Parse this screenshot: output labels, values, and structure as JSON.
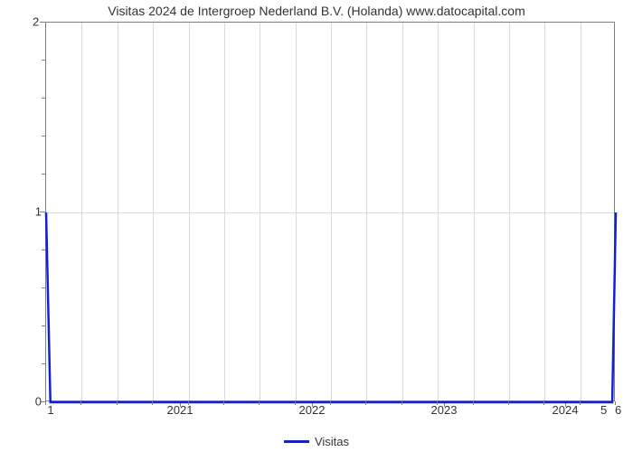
{
  "chart": {
    "type": "line",
    "title": "Visitas 2024 de Intergroep Nederland B.V. (Holanda) www.datocapital.com",
    "title_fontsize": 14,
    "title_color": "#333333",
    "background_color": "#ffffff",
    "plot_border_color": "#808080",
    "grid_color": "#d9d9d9",
    "line_color": "#1220d8",
    "line_width": 2.5,
    "y_axis": {
      "min": 0,
      "max": 2,
      "major_ticks": [
        0,
        1,
        2
      ],
      "minor_ticks_per_major": 5,
      "tick_labels": [
        "0",
        "1",
        "2"
      ],
      "tick_fontsize": 13,
      "tick_color": "#333333"
    },
    "x_axis": {
      "domain_index_min": 0,
      "domain_index_max": 16,
      "left_edge_label": "1",
      "right_edge_labels": [
        "5",
        "6"
      ],
      "year_labels": [
        {
          "label": "2021",
          "pos_index": 3.8
        },
        {
          "label": "2022",
          "pos_index": 7.5
        },
        {
          "label": "2023",
          "pos_index": 11.2
        },
        {
          "label": "2024",
          "pos_index": 14.6
        }
      ],
      "minor_tick_count": 17,
      "major_tick_indices": [
        3.8,
        7.5,
        11.2,
        14.6
      ],
      "tick_fontsize": 13,
      "tick_color": "#333333"
    },
    "series": {
      "name": "Visitas",
      "points": [
        {
          "x": 0,
          "y": 1.0
        },
        {
          "x": 0.12,
          "y": 0.0
        },
        {
          "x": 15.9,
          "y": 0.0
        },
        {
          "x": 16.0,
          "y": 1.0
        }
      ]
    },
    "legend": {
      "label": "Visitas",
      "swatch_color": "#1220d8",
      "fontsize": 13
    }
  }
}
